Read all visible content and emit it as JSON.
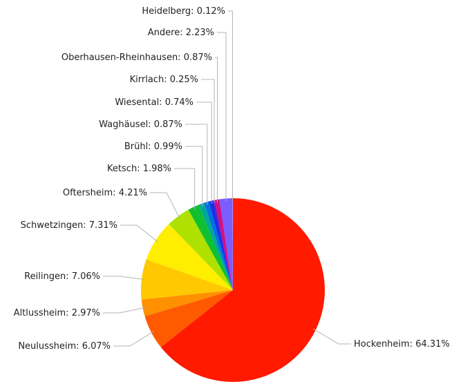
{
  "chart_data": {
    "type": "pie",
    "start_angle_deg": 0,
    "direction": "clockwise",
    "slices": [
      {
        "name": "Hockenheim",
        "value": 64.31,
        "label": "Hockenheim: 64.31%",
        "color": "#ff1a00"
      },
      {
        "name": "Neulussheim",
        "value": 6.07,
        "label": "Neulussheim: 6.07%",
        "color": "#ff5a00"
      },
      {
        "name": "Altlussheim",
        "value": 2.97,
        "label": "Altlussheim: 2.97%",
        "color": "#ff9000"
      },
      {
        "name": "Reilingen",
        "value": 7.06,
        "label": "Reilingen: 7.06%",
        "color": "#ffc800"
      },
      {
        "name": "Schwetzingen",
        "value": 7.31,
        "label": "Schwetzingen: 7.31%",
        "color": "#ffee00"
      },
      {
        "name": "Oftersheim",
        "value": 4.21,
        "label": "Oftersheim: 4.21%",
        "color": "#aee000"
      },
      {
        "name": "Ketsch",
        "value": 1.98,
        "label": "Ketsch: 1.98%",
        "color": "#10c030"
      },
      {
        "name": "Brühl",
        "value": 0.99,
        "label": "Brühl: 0.99%",
        "color": "#00a89a"
      },
      {
        "name": "Waghäusel",
        "value": 0.87,
        "label": "Waghäusel: 0.87%",
        "color": "#0070e0"
      },
      {
        "name": "Wiesental",
        "value": 0.74,
        "label": "Wiesental: 0.74%",
        "color": "#1a2ee8"
      },
      {
        "name": "Kirrlach",
        "value": 0.25,
        "label": "Kirrlach: 0.25%",
        "color": "#5a14d8"
      },
      {
        "name": "Oberhausen-Rheinhausen",
        "value": 0.87,
        "label": "Oberhausen-Rheinhausen: 0.87%",
        "color": "#d01280"
      },
      {
        "name": "Andere",
        "value": 2.23,
        "label": "Andere: 2.23%",
        "color": "#7a5cff"
      },
      {
        "name": "Heidelberg",
        "value": 0.12,
        "label": "Heidelberg: 0.12%",
        "color": "#9b8cff"
      }
    ]
  }
}
